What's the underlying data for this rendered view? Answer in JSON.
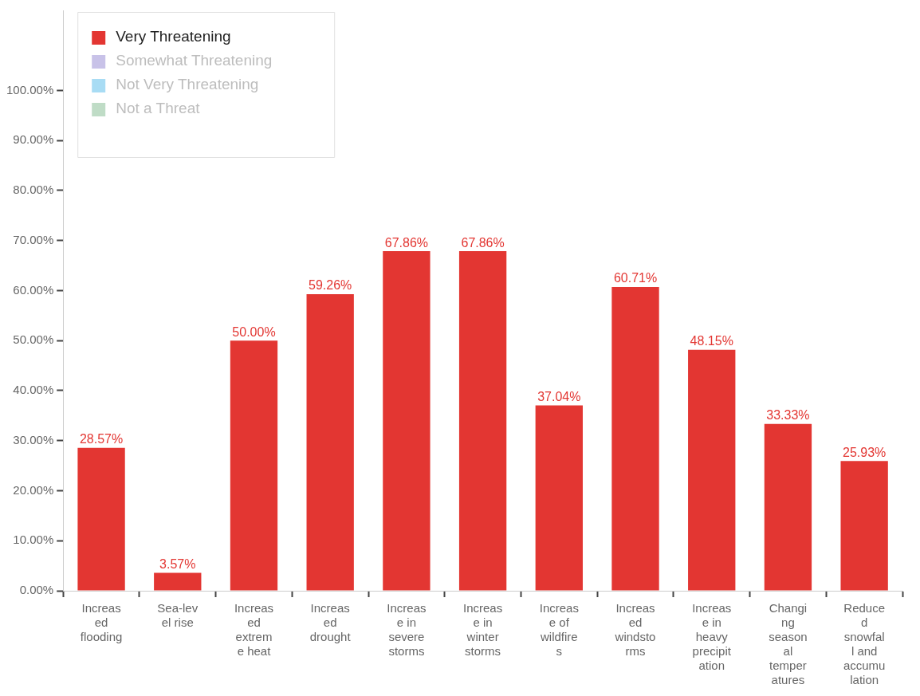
{
  "chart_data": {
    "type": "bar",
    "categories": [
      "Increased flooding",
      "Sea-level rise",
      "Increased extreme heat",
      "Increased drought",
      "Increase in severe storms",
      "Increase in winter storms",
      "Increase of wildfires",
      "Increased windstorms",
      "Increase in heavy precipitation",
      "Changing seasonal temperatures",
      "Reduced snowfall and accumulation"
    ],
    "series": [
      {
        "name": "Very Threatening",
        "color": "#e33632",
        "values": [
          28.57,
          3.57,
          50.0,
          59.26,
          67.86,
          67.86,
          37.04,
          60.71,
          48.15,
          33.33,
          25.93
        ],
        "value_labels": [
          "28.57%",
          "3.57%",
          "50.00%",
          "59.26%",
          "67.86%",
          "67.86%",
          "37.04%",
          "60.71%",
          "48.15%",
          "33.33%",
          "25.93%"
        ]
      },
      {
        "name": "Somewhat Threatening",
        "color": "#c8c2e8",
        "values": [
          null,
          null,
          null,
          null,
          null,
          null,
          null,
          null,
          null,
          null,
          null
        ]
      },
      {
        "name": "Not Very Threatening",
        "color": "#a8dcf4",
        "values": [
          null,
          null,
          null,
          null,
          null,
          null,
          null,
          null,
          null,
          null,
          null
        ]
      },
      {
        "name": "Not a Threat",
        "color": "#bfdcc6",
        "values": [
          null,
          null,
          null,
          null,
          null,
          null,
          null,
          null,
          null,
          null,
          null
        ]
      }
    ],
    "ylim": [
      0,
      116
    ],
    "yticks": [
      {
        "value": 0,
        "label": "0.00%"
      },
      {
        "value": 10,
        "label": "10.00%"
      },
      {
        "value": 20,
        "label": "20.00%"
      },
      {
        "value": 30,
        "label": "30.00%"
      },
      {
        "value": 40,
        "label": "40.00%"
      },
      {
        "value": 50,
        "label": "50.00%"
      },
      {
        "value": 60,
        "label": "60.00%"
      },
      {
        "value": 70,
        "label": "70.00%"
      },
      {
        "value": 80,
        "label": "80.00%"
      },
      {
        "value": 90,
        "label": "90.00%"
      },
      {
        "value": 100,
        "label": "100.00%"
      }
    ],
    "grid": false,
    "legend": "top left"
  }
}
